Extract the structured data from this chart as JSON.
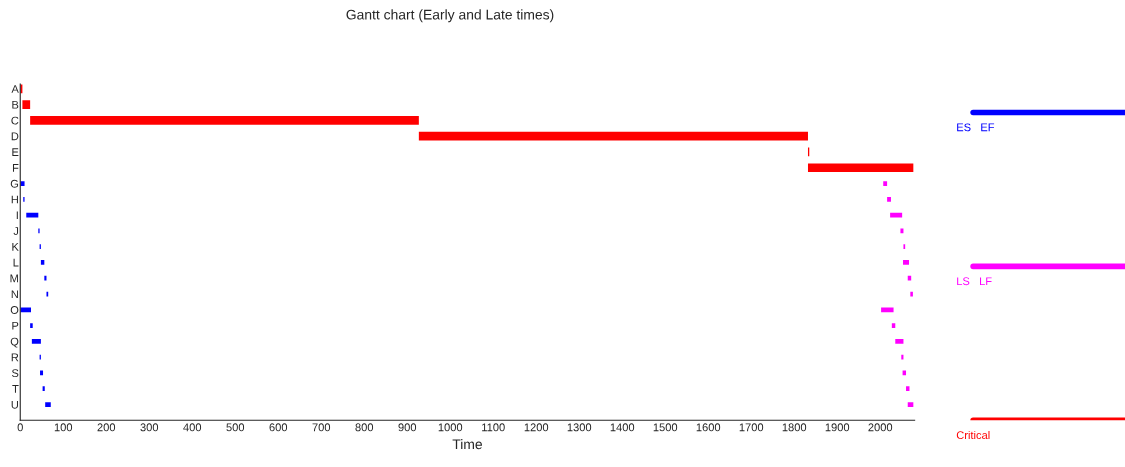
{
  "chart_data": {
    "type": "bar",
    "orientation": "horizontal",
    "title": "Gantt chart (Early and Late times)",
    "xlabel": "Time",
    "categories": [
      "A",
      "B",
      "C",
      "D",
      "E",
      "F",
      "G",
      "H",
      "I",
      "J",
      "K",
      "L",
      "M",
      "N",
      "O",
      "P",
      "Q",
      "R",
      "S",
      "T",
      "U"
    ],
    "xlim": [
      0,
      2080
    ],
    "xticks": [
      0,
      100,
      200,
      300,
      400,
      500,
      600,
      700,
      800,
      900,
      1000,
      1100,
      1200,
      1300,
      1400,
      1500,
      1600,
      1700,
      1800,
      1900,
      2000
    ],
    "grid": false,
    "legend": "right",
    "series": [
      {
        "name": "ES   EF",
        "color": "#0000ff",
        "base": [
          null,
          null,
          null,
          null,
          null,
          null,
          0,
          7,
          14,
          42,
          45,
          48,
          56,
          61,
          0,
          23,
          27,
          45,
          46,
          52,
          58
        ],
        "values": [
          null,
          null,
          null,
          null,
          null,
          null,
          10,
          3,
          28,
          3,
          3,
          8,
          5,
          4,
          25,
          6,
          21,
          3,
          7,
          5,
          13
        ]
      },
      {
        "name": "LS   LF",
        "color": "#ff00ff",
        "base": [
          null,
          null,
          null,
          null,
          null,
          null,
          2007,
          2016,
          2023,
          2047,
          2054,
          2053,
          2064,
          2070,
          2002,
          2027,
          2035,
          2049,
          2052,
          2060,
          2064
        ],
        "values": [
          null,
          null,
          null,
          null,
          null,
          null,
          9,
          9,
          28,
          7,
          4,
          14,
          8,
          6,
          29,
          8,
          19,
          5,
          8,
          8,
          13
        ]
      },
      {
        "name": "Critical",
        "color": "#ff0000",
        "base": [
          0,
          5,
          23,
          927,
          1832,
          1832,
          null,
          null,
          null,
          null,
          null,
          null,
          null,
          null,
          null,
          null,
          null,
          null,
          null,
          null,
          null
        ],
        "values": [
          5,
          18,
          904,
          905,
          3,
          245,
          null,
          null,
          null,
          null,
          null,
          null,
          null,
          null,
          null,
          null,
          null,
          null,
          null,
          null,
          null
        ]
      }
    ]
  }
}
